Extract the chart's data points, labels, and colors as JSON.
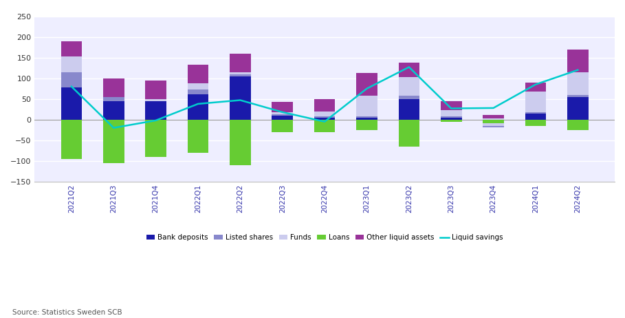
{
  "categories": [
    "2021Q2",
    "2021Q3",
    "2021Q4",
    "2022Q1",
    "2022Q2",
    "2022Q3",
    "2022Q4",
    "2023Q1",
    "2023Q2",
    "2023Q3",
    "2023Q4",
    "2024Q1",
    "2024Q2"
  ],
  "bank_deposits": [
    78,
    45,
    45,
    62,
    105,
    10,
    5,
    5,
    50,
    5,
    -18,
    15,
    55
  ],
  "listed_shares": [
    37,
    10,
    0,
    10,
    5,
    3,
    3,
    3,
    8,
    3,
    3,
    3,
    5
  ],
  "funds": [
    37,
    0,
    5,
    15,
    5,
    5,
    12,
    50,
    45,
    15,
    18,
    50,
    55
  ],
  "loans": [
    -95,
    -105,
    -90,
    -80,
    -110,
    -30,
    -30,
    -25,
    -65,
    -5,
    -8,
    -15,
    -25
  ],
  "other_liquid": [
    38,
    45,
    45,
    45,
    45,
    25,
    30,
    55,
    35,
    22,
    8,
    22,
    55
  ],
  "liquid_savings": [
    80,
    -20,
    -2,
    38,
    47,
    18,
    -5,
    75,
    127,
    27,
    28,
    85,
    120
  ],
  "source": "Source: Statistics Sweden SCB",
  "bar_color_bank": "#1a1aaa",
  "bar_color_listed": "#8888cc",
  "bar_color_funds": "#ccccee",
  "bar_color_loans": "#66cc33",
  "bar_color_other": "#993399",
  "line_color": "#00cccc",
  "bg_color": "#eeeeff",
  "grid_color": "#ffffff",
  "ylim": [
    -150,
    250
  ],
  "yticks": [
    -150,
    -100,
    -50,
    0,
    50,
    100,
    150,
    200,
    250
  ],
  "legend_labels": [
    "Bank deposits",
    "Listed shares",
    "Funds",
    "Loans",
    "Other liquid assets",
    "Liquid savings"
  ]
}
